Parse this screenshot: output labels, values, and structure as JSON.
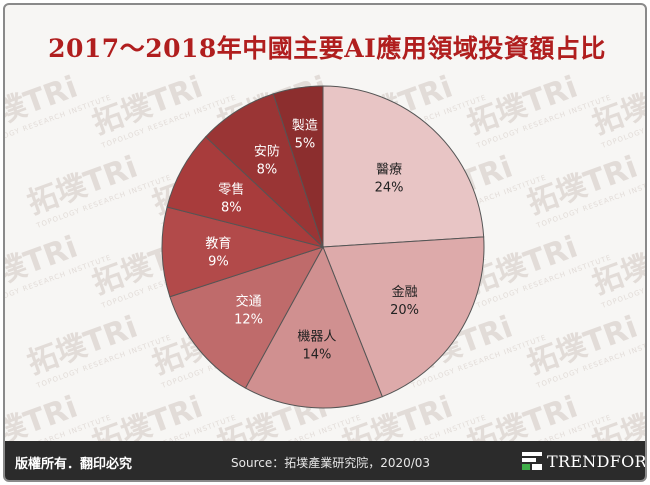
{
  "title": "2017～2018年中國主要AI應用領域投資額占比",
  "watermark_text": "拓墣TRi",
  "watermark_subtext": "TOPOLOGY RESEARCH INSTITUTE",
  "footer": {
    "rights": "版權所有．翻印必究",
    "source": "Source：拓墣產業研究院，2020/03",
    "brand": "TRENDFORCE"
  },
  "chart_data": {
    "type": "pie",
    "start_angle_deg": 0,
    "direction": "clockwise",
    "slices": [
      {
        "label": "醫療",
        "value": 24,
        "display": "24%",
        "color": "#e8c5c5"
      },
      {
        "label": "金融",
        "value": 20,
        "display": "20%",
        "color": "#ddaaaa"
      },
      {
        "label": "機器人",
        "value": 14,
        "display": "14%",
        "color": "#d09090"
      },
      {
        "label": "交通",
        "value": 12,
        "display": "12%",
        "color": "#bf6b6b"
      },
      {
        "label": "教育",
        "value": 9,
        "display": "9%",
        "color": "#b24a4a"
      },
      {
        "label": "零售",
        "value": 8,
        "display": "8%",
        "color": "#a83c3c"
      },
      {
        "label": "安防",
        "value": 8,
        "display": "8%",
        "color": "#9a3535"
      },
      {
        "label": "製造",
        "value": 5,
        "display": "5%",
        "color": "#8c2e2e"
      }
    ]
  }
}
